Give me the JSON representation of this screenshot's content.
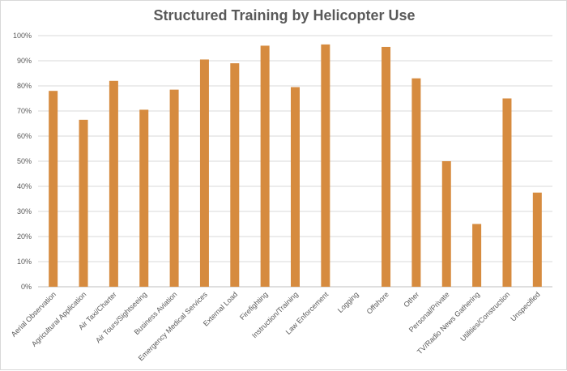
{
  "chart_data": {
    "type": "bar",
    "title": "Structured Training by Helicopter Use",
    "xlabel": "",
    "ylabel": "",
    "ylim": [
      0,
      100
    ],
    "yticks": [
      "0%",
      "10%",
      "20%",
      "30%",
      "40%",
      "50%",
      "60%",
      "70%",
      "80%",
      "90%",
      "100%"
    ],
    "grid": true,
    "legend": "none",
    "bar_color": "#D68B3F",
    "categories": [
      "Aerial Observation",
      "Agricultural Application",
      "Air Taxi/Charter",
      "Air Tours/Sightseeing",
      "Business Aviation",
      "Emergency Medical Services",
      "External Load",
      "Firefighting",
      "Instruction/Training",
      "Law Enforcement",
      "Logging",
      "Offshore",
      "Other",
      "Personal/Private",
      "TV/Radio News Gathering",
      "Utilities/Construction",
      "Unspecified"
    ],
    "values": [
      78,
      66.5,
      82,
      70.5,
      78.5,
      90.5,
      89,
      96,
      79.5,
      96.5,
      0,
      95.5,
      83,
      50,
      25,
      75,
      37.5
    ]
  }
}
